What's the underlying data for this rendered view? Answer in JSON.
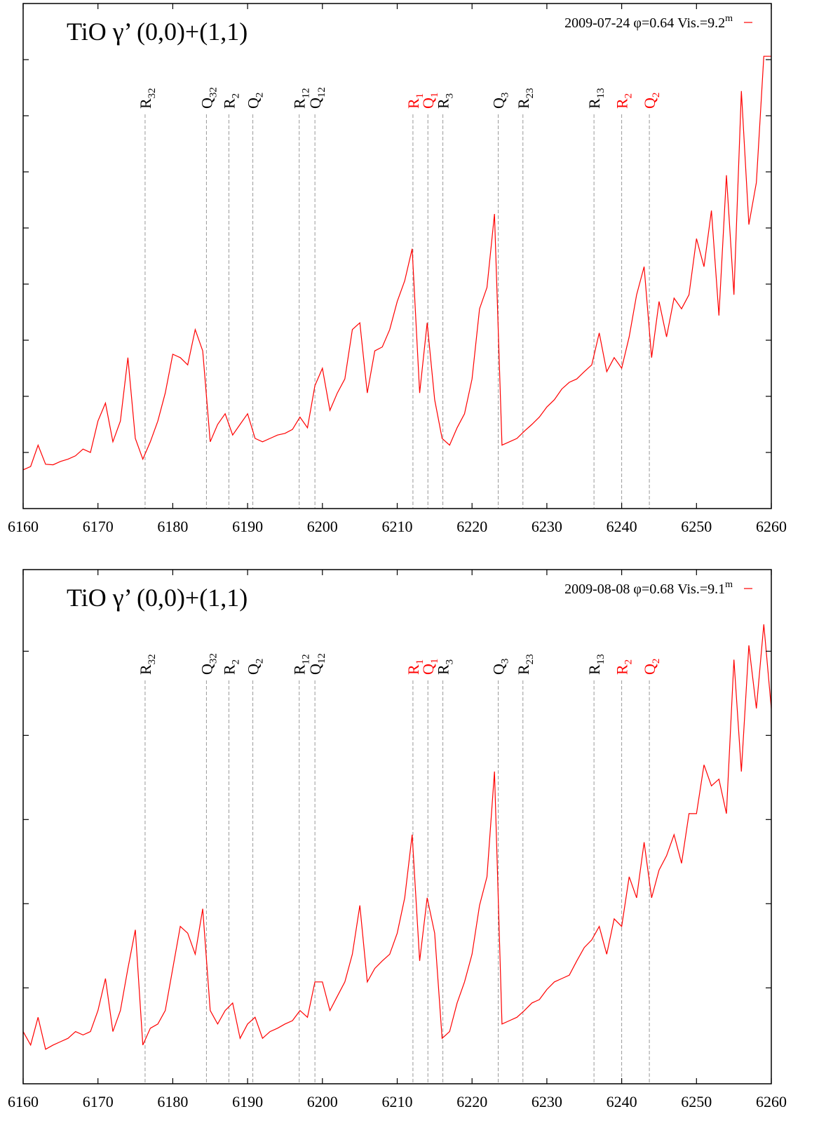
{
  "chart_data": [
    {
      "type": "line",
      "title": "TiO γ’ (0,0)+(1,1)",
      "series": [
        {
          "name": "2009-07-24 φ=0.64 Vis.=9.2",
          "name_sup": "m",
          "color": "#ff0000",
          "values": [
            0.69,
            0.75,
            1.13,
            0.79,
            0.78,
            0.84,
            0.88,
            0.94,
            1.06,
            1.0,
            1.56,
            1.88,
            1.19,
            1.56,
            2.69,
            1.25,
            0.88,
            1.19,
            1.56,
            2.06,
            2.75,
            2.69,
            2.56,
            3.19,
            2.81,
            1.19,
            1.5,
            1.69,
            1.31,
            1.5,
            1.69,
            1.25,
            1.19,
            1.25,
            1.31,
            1.34,
            1.41,
            1.63,
            1.44,
            2.19,
            2.5,
            1.75,
            2.06,
            2.31,
            3.19,
            3.31,
            2.06,
            2.81,
            2.88,
            3.19,
            3.69,
            4.06,
            4.63,
            2.06,
            3.31,
            1.94,
            1.25,
            1.13,
            1.44,
            1.69,
            2.31,
            3.56,
            3.94,
            5.25,
            1.13,
            1.19,
            1.25,
            1.38,
            1.5,
            1.63,
            1.81,
            1.94,
            2.13,
            2.25,
            2.31,
            2.44,
            2.56,
            3.13,
            2.44,
            2.69,
            2.5,
            3.06,
            3.81,
            4.31,
            2.69,
            3.69,
            3.06,
            3.75,
            3.56,
            3.81,
            4.81,
            4.31,
            5.31,
            3.44,
            5.94,
            3.81,
            7.44,
            5.06,
            5.81,
            8.06,
            8.06
          ]
        }
      ],
      "x": [
        6160,
        6161,
        6162,
        6163,
        6164,
        6165,
        6166,
        6167,
        6168,
        6169,
        6170,
        6171,
        6172,
        6173,
        6174,
        6175,
        6176,
        6177,
        6178,
        6179,
        6180,
        6181,
        6182,
        6183,
        6184,
        6185,
        6186,
        6187,
        6188,
        6189,
        6190,
        6191,
        6192,
        6193,
        6194,
        6195,
        6196,
        6197,
        6198,
        6199,
        6200,
        6201,
        6202,
        6203,
        6204,
        6205,
        6206,
        6207,
        6208,
        6209,
        6210,
        6211,
        6212,
        6213,
        6214,
        6215,
        6216,
        6217,
        6218,
        6219,
        6220,
        6221,
        6222,
        6223,
        6224,
        6225,
        6226,
        6227,
        6228,
        6229,
        6230,
        6231,
        6232,
        6233,
        6234,
        6235,
        6236,
        6237,
        6238,
        6239,
        6240,
        6241,
        6242,
        6243,
        6244,
        6245,
        6246,
        6247,
        6248,
        6249,
        6250,
        6251,
        6252,
        6253,
        6254,
        6255,
        6256,
        6257,
        6258,
        6259,
        6260
      ],
      "annotations": [
        {
          "label": "R",
          "sub": "32",
          "x": 6176.3,
          "color": "#000000"
        },
        {
          "label": "Q",
          "sub": "32",
          "x": 6184.5,
          "color": "#000000"
        },
        {
          "label": "R",
          "sub": "2",
          "x": 6187.5,
          "color": "#000000"
        },
        {
          "label": "Q",
          "sub": "2",
          "x": 6190.7,
          "color": "#000000"
        },
        {
          "label": "R",
          "sub": "12",
          "x": 6196.9,
          "color": "#000000"
        },
        {
          "label": "Q",
          "sub": "12",
          "x": 6199.0,
          "color": "#000000"
        },
        {
          "label": "R",
          "sub": "1",
          "x": 6212.1,
          "color": "#ff0000"
        },
        {
          "label": "Q",
          "sub": "1",
          "x": 6214.1,
          "color": "#ff0000"
        },
        {
          "label": "R",
          "sub": "3",
          "x": 6216.1,
          "color": "#000000"
        },
        {
          "label": "Q",
          "sub": "3",
          "x": 6223.5,
          "color": "#000000"
        },
        {
          "label": "R",
          "sub": "23",
          "x": 6226.8,
          "color": "#000000"
        },
        {
          "label": "R",
          "sub": "13",
          "x": 6236.3,
          "color": "#000000"
        },
        {
          "label": "R",
          "sub": "2",
          "x": 6240.0,
          "color": "#ff0000"
        },
        {
          "label": "Q",
          "sub": "2",
          "x": 6243.7,
          "color": "#ff0000"
        }
      ],
      "xlim": [
        6160,
        6260
      ],
      "xticks": [
        6160,
        6170,
        6180,
        6190,
        6200,
        6210,
        6220,
        6230,
        6240,
        6250,
        6260
      ],
      "ylim": [
        0,
        9
      ],
      "yticks": [
        1,
        2,
        3,
        4,
        5,
        6,
        7,
        8
      ]
    },
    {
      "type": "line",
      "title": "TiO γ’ (0,0)+(1,1)",
      "series": [
        {
          "name": "2009-08-08 φ=0.68 Vis.=9.1",
          "name_sup": "m",
          "color": "#ff0000",
          "values": [
            -0.52,
            -0.68,
            -0.35,
            -0.73,
            -0.68,
            -0.64,
            -0.6,
            -0.52,
            -0.56,
            -0.52,
            -0.27,
            0.11,
            -0.52,
            -0.27,
            0.23,
            0.69,
            -0.68,
            -0.48,
            -0.43,
            -0.27,
            0.23,
            0.73,
            0.65,
            0.4,
            0.94,
            -0.27,
            -0.43,
            -0.27,
            -0.18,
            -0.6,
            -0.43,
            -0.35,
            -0.6,
            -0.52,
            -0.48,
            -0.43,
            -0.39,
            -0.27,
            -0.35,
            0.07,
            0.07,
            -0.27,
            -0.1,
            0.07,
            0.4,
            0.98,
            0.07,
            0.23,
            0.32,
            0.4,
            0.65,
            1.07,
            1.82,
            0.32,
            1.07,
            0.65,
            -0.6,
            -0.52,
            -0.18,
            0.07,
            0.4,
            0.98,
            1.32,
            2.57,
            -0.43,
            -0.39,
            -0.35,
            -0.27,
            -0.18,
            -0.14,
            -0.02,
            0.07,
            0.11,
            0.15,
            0.32,
            0.48,
            0.57,
            0.73,
            0.4,
            0.82,
            0.73,
            1.32,
            1.07,
            1.73,
            1.07,
            1.4,
            1.57,
            1.82,
            1.48,
            2.07,
            2.07,
            2.65,
            2.4,
            2.48,
            2.07,
            3.9,
            2.57,
            4.07,
            3.32,
            4.32,
            3.32
          ]
        }
      ],
      "x": [
        6160,
        6161,
        6162,
        6163,
        6164,
        6165,
        6166,
        6167,
        6168,
        6169,
        6170,
        6171,
        6172,
        6173,
        6174,
        6175,
        6176,
        6177,
        6178,
        6179,
        6180,
        6181,
        6182,
        6183,
        6184,
        6185,
        6186,
        6187,
        6188,
        6189,
        6190,
        6191,
        6192,
        6193,
        6194,
        6195,
        6196,
        6197,
        6198,
        6199,
        6200,
        6201,
        6202,
        6203,
        6204,
        6205,
        6206,
        6207,
        6208,
        6209,
        6210,
        6211,
        6212,
        6213,
        6214,
        6215,
        6216,
        6217,
        6218,
        6219,
        6220,
        6221,
        6222,
        6223,
        6224,
        6225,
        6226,
        6227,
        6228,
        6229,
        6230,
        6231,
        6232,
        6233,
        6234,
        6235,
        6236,
        6237,
        6238,
        6239,
        6240,
        6241,
        6242,
        6243,
        6244,
        6245,
        6246,
        6247,
        6248,
        6249,
        6250,
        6251,
        6252,
        6253,
        6254,
        6255,
        6256,
        6257,
        6258,
        6259,
        6260
      ],
      "annotations": [
        {
          "label": "R",
          "sub": "32",
          "x": 6176.3,
          "color": "#000000"
        },
        {
          "label": "Q",
          "sub": "32",
          "x": 6184.5,
          "color": "#000000"
        },
        {
          "label": "R",
          "sub": "2",
          "x": 6187.5,
          "color": "#000000"
        },
        {
          "label": "Q",
          "sub": "2",
          "x": 6190.7,
          "color": "#000000"
        },
        {
          "label": "R",
          "sub": "12",
          "x": 6196.9,
          "color": "#000000"
        },
        {
          "label": "Q",
          "sub": "12",
          "x": 6199.0,
          "color": "#000000"
        },
        {
          "label": "R",
          "sub": "1",
          "x": 6212.1,
          "color": "#ff0000"
        },
        {
          "label": "Q",
          "sub": "1",
          "x": 6214.1,
          "color": "#ff0000"
        },
        {
          "label": "R",
          "sub": "3",
          "x": 6216.1,
          "color": "#000000"
        },
        {
          "label": "Q",
          "sub": "3",
          "x": 6223.5,
          "color": "#000000"
        },
        {
          "label": "R",
          "sub": "23",
          "x": 6226.8,
          "color": "#000000"
        },
        {
          "label": "R",
          "sub": "13",
          "x": 6236.3,
          "color": "#000000"
        },
        {
          "label": "R",
          "sub": "2",
          "x": 6240.0,
          "color": "#ff0000"
        },
        {
          "label": "Q",
          "sub": "2",
          "x": 6243.7,
          "color": "#ff0000"
        }
      ],
      "xlim": [
        6160,
        6260
      ],
      "xticks": [
        6160,
        6170,
        6180,
        6190,
        6200,
        6210,
        6220,
        6230,
        6240,
        6250,
        6260
      ],
      "ylim": [
        -1.14,
        4.97
      ],
      "yticks": [
        0,
        1,
        2,
        3,
        4
      ]
    }
  ]
}
